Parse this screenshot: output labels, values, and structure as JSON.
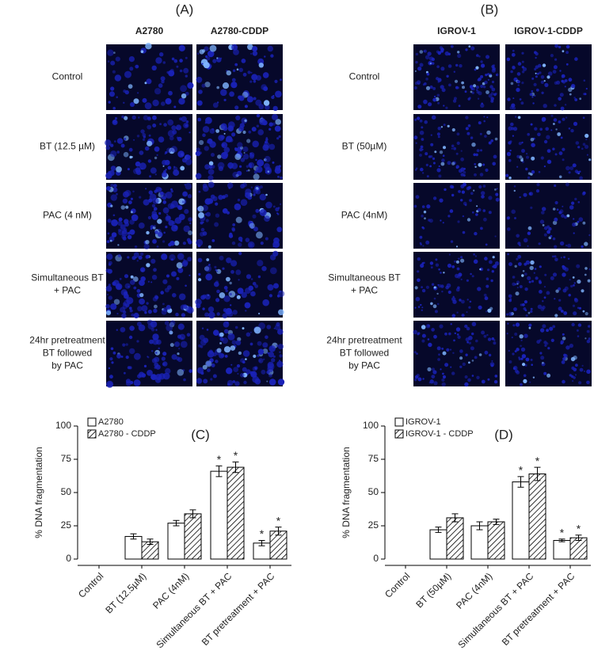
{
  "panels": [
    {
      "label": "(A)",
      "columns": [
        "A2780",
        "A2780-CDDP"
      ],
      "rows": [
        [
          "Control"
        ],
        [
          "BT (12.5 µM)"
        ],
        [
          "PAC (4 nM)"
        ],
        [
          "Simultaneous BT",
          "+ PAC"
        ],
        [
          "24hr pretreatment",
          "BT followed",
          "by PAC"
        ]
      ]
    },
    {
      "label": "(B)",
      "columns": [
        "IGROV-1",
        "IGROV-1-CDDP"
      ],
      "rows": [
        [
          "Control"
        ],
        [
          "BT (50µM)"
        ],
        [
          "PAC (4nM)"
        ],
        [
          "Simultaneous BT",
          "+ PAC"
        ],
        [
          "24hr pretreatment",
          "BT followed",
          "by PAC"
        ]
      ]
    }
  ],
  "chart_data": [
    {
      "type": "bar",
      "title": "(C)",
      "y_label": "% DNA fragmentation",
      "categories": [
        "Control",
        "BT (12.5µM)",
        "PAC (4nM)",
        "Simultaneous BT + PAC",
        "BT pretreatment + PAC"
      ],
      "series": [
        {
          "name": "A2780",
          "color": "#ffffff",
          "hatch": false,
          "values": [
            null,
            17,
            27,
            66,
            12
          ],
          "errors": [
            null,
            2,
            2,
            4,
            2
          ],
          "significance": [
            null,
            null,
            null,
            "*",
            "*"
          ]
        },
        {
          "name": "A2780 - CDDP",
          "color": "#ffffff",
          "hatch": true,
          "values": [
            null,
            13,
            34,
            69,
            21
          ],
          "errors": [
            null,
            2,
            3,
            4,
            3
          ],
          "significance": [
            null,
            null,
            null,
            "*",
            "*"
          ]
        }
      ],
      "ylim": [
        0,
        100
      ],
      "yticks": [
        0,
        25,
        50,
        75,
        100
      ]
    },
    {
      "type": "bar",
      "title": "(D)",
      "y_label": "% DNA fragmentation",
      "categories": [
        "Control",
        "BT (50µM)",
        "PAC (4nM)",
        "Simultaneous BT + PAC",
        "BT pretreatment + PAC"
      ],
      "series": [
        {
          "name": "IGROV-1",
          "color": "#ffffff",
          "hatch": false,
          "values": [
            null,
            22,
            25,
            58,
            14
          ],
          "errors": [
            null,
            2,
            3,
            4,
            1
          ],
          "significance": [
            null,
            null,
            null,
            "*",
            "*"
          ]
        },
        {
          "name": "IGROV-1 - CDDP",
          "color": "#ffffff",
          "hatch": true,
          "values": [
            null,
            31,
            28,
            64,
            16
          ],
          "errors": [
            null,
            3,
            2,
            5,
            2
          ],
          "significance": [
            null,
            null,
            null,
            "*",
            "*"
          ]
        }
      ],
      "ylim": [
        0,
        100
      ],
      "yticks": [
        0,
        25,
        50,
        75,
        100
      ]
    }
  ]
}
